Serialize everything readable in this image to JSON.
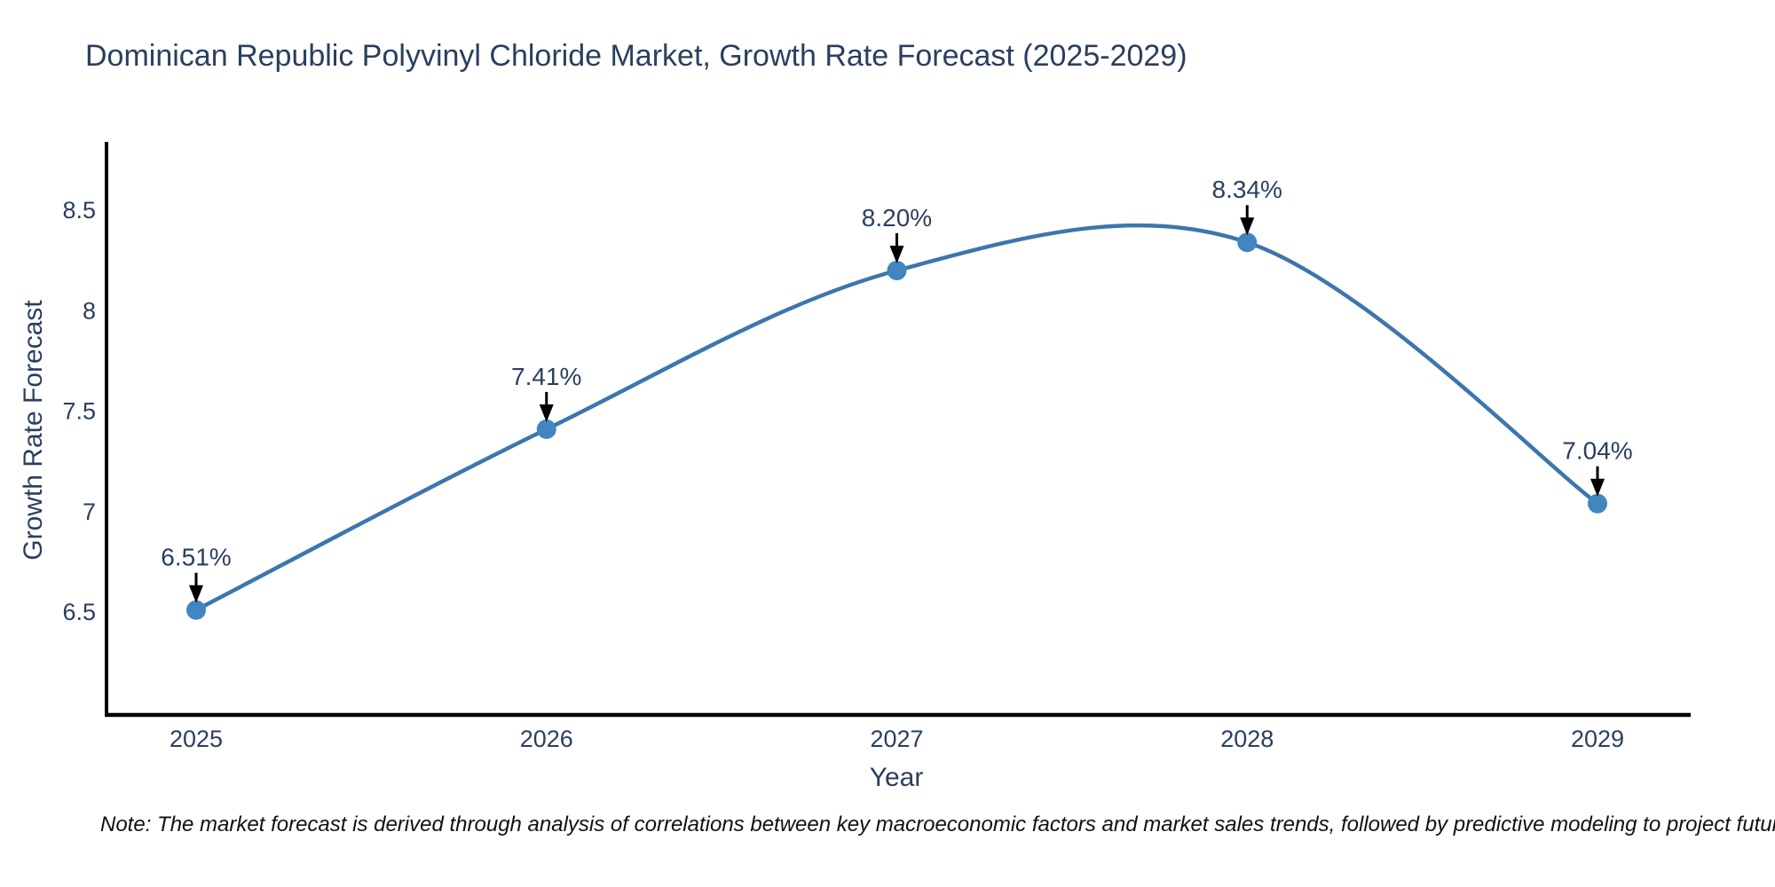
{
  "title": "Dominican Republic Polyvinyl Chloride Market, Growth Rate Forecast (2025-2029)",
  "note": "Note: The market forecast is derived through analysis of correlations between key macroeconomic factors and market sales trends, followed by predictive modeling to project future sales",
  "chart_data": {
    "type": "line",
    "line_shape": "spline",
    "title": "Dominican Republic Polyvinyl Chloride Market, Growth Rate Forecast (2025-2029)",
    "xlabel": "Year",
    "ylabel": "Growth Rate Forecast",
    "categories": [
      "2025",
      "2026",
      "2027",
      "2028",
      "2029"
    ],
    "series": [
      {
        "name": "Growth Rate Forecast",
        "values": [
          6.51,
          7.41,
          8.2,
          8.34,
          7.04
        ]
      }
    ],
    "data_labels": [
      "6.51%",
      "7.41%",
      "8.20%",
      "8.34%",
      "7.04%"
    ],
    "y_ticks": [
      6.5,
      7,
      7.5,
      8,
      8.5
    ],
    "ylim": [
      6.0,
      8.85
    ],
    "grid": false,
    "legend_position": "none",
    "colors": {
      "line": "#3d76ad",
      "marker": "#4186c0",
      "axis": "#000000",
      "text": "#2a3f5f",
      "annotation_arrow": "#000000",
      "note_text": "#111111"
    }
  }
}
